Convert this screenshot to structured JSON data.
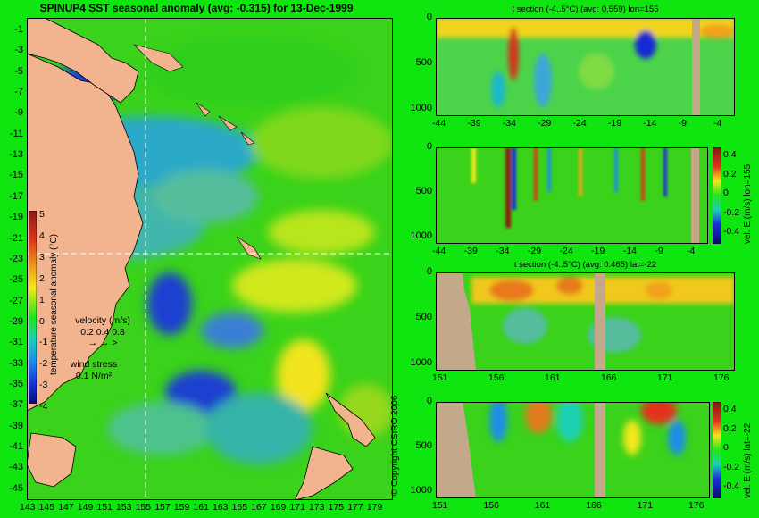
{
  "chart_data": [
    {
      "type": "heatmap",
      "title": "SPINUP4 SST seasonal anomaly (avg: -0.315) for 13-Dec-1999",
      "xticks": [
        "143",
        "145",
        "147",
        "149",
        "151",
        "153",
        "155",
        "157",
        "159",
        "161",
        "163",
        "165",
        "167",
        "169",
        "171",
        "173",
        "175",
        "177",
        "179"
      ],
      "yticks": [
        "-1",
        "-3",
        "-5",
        "-7",
        "-9",
        "-11",
        "-13",
        "-15",
        "-17",
        "-19",
        "-21",
        "-23",
        "-25",
        "-27",
        "-29",
        "-31",
        "-33",
        "-35",
        "-37",
        "-39",
        "-41",
        "-43",
        "-45"
      ],
      "xlim": [
        142,
        180
      ],
      "ylim": [
        -45,
        0
      ],
      "crosshair": {
        "lon": 155,
        "lat": -22
      },
      "colorbar": {
        "label": "temperature seasonal anomaly (°C)",
        "ticks": [
          "5",
          "4",
          "3",
          "2",
          "1",
          "0",
          "-1",
          "-2",
          "-3",
          "-4"
        ],
        "range": [
          -4,
          5
        ]
      },
      "velocity_legend": {
        "label": "velocity (m/s)",
        "values": "0.2 0.4 0.8"
      },
      "wind_legend": {
        "label": "wind stress",
        "value": "0.1 N/m²"
      }
    },
    {
      "type": "heatmap",
      "title": "t section (-4..5°C) (avg: 0.559) lon=155",
      "xticks": [
        "-44",
        "-39",
        "-34",
        "-29",
        "-24",
        "-19",
        "-14",
        "-9",
        "-4"
      ],
      "yticks": [
        "0",
        "500",
        "1000"
      ]
    },
    {
      "type": "heatmap",
      "title": "",
      "xticks": [
        "-44",
        "-39",
        "-34",
        "-29",
        "-24",
        "-19",
        "-14",
        "-9",
        "-4"
      ],
      "yticks": [
        "0",
        "500",
        "1000"
      ],
      "colorbar": {
        "label": "vel. E (m/s) lon=155",
        "ticks": [
          "0.4",
          "0.2",
          "0",
          "-0.2",
          "-0.4"
        ]
      }
    },
    {
      "type": "heatmap",
      "title": "t section (-4..5°C) (avg: 0.465) lat=-22",
      "xticks": [
        "151",
        "156",
        "161",
        "166",
        "171",
        "176"
      ],
      "yticks": [
        "0",
        "500",
        "1000"
      ]
    },
    {
      "type": "heatmap",
      "title": "",
      "xticks": [
        "151",
        "156",
        "161",
        "166",
        "171",
        "176"
      ],
      "yticks": [
        "0",
        "500",
        "1000"
      ],
      "colorbar": {
        "label": "vel. E (m/s) lat=-22",
        "ticks": [
          "0.4",
          "0.2",
          "0",
          "-0.2",
          "-0.4"
        ]
      }
    }
  ],
  "copyright": "© Copyright CSIRO 2006",
  "colors": {
    "background": "#0fe60f",
    "land": "#f2b38f",
    "section_land": "#c3a88a"
  }
}
